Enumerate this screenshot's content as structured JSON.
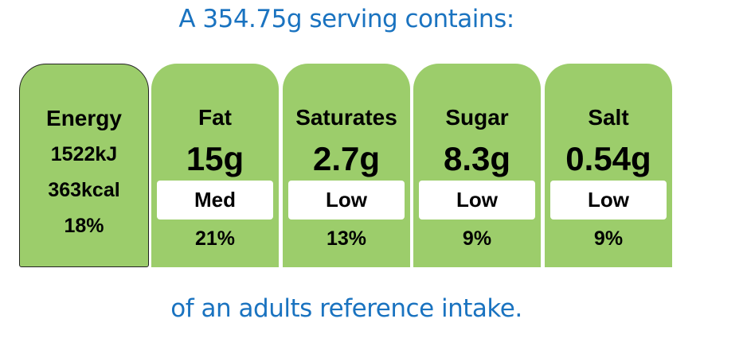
{
  "header": {
    "serving_text": "A 354.75g serving contains:"
  },
  "energy": {
    "label": "Energy",
    "kj": "1522kJ",
    "kcal": "363kcal",
    "percent": "18%",
    "color": "#9ccd6b"
  },
  "nutrients": [
    {
      "label": "Fat",
      "amount": "15g",
      "level": "Med",
      "percent": "21%",
      "color": "#9ccd6b"
    },
    {
      "label": "Saturates",
      "amount": "2.7g",
      "level": "Low",
      "percent": "13%",
      "color": "#9ccd6b"
    },
    {
      "label": "Sugar",
      "amount": "8.3g",
      "level": "Low",
      "percent": "9%",
      "color": "#9ccd6b"
    },
    {
      "label": "Salt",
      "amount": "0.54g",
      "level": "Low",
      "percent": "9%",
      "color": "#9ccd6b"
    }
  ],
  "footer": {
    "reference_text": "of an adults reference intake."
  },
  "colors": {
    "heading": "#1a73c0",
    "card": "#9ccd6b",
    "level_box": "#ffffff"
  }
}
